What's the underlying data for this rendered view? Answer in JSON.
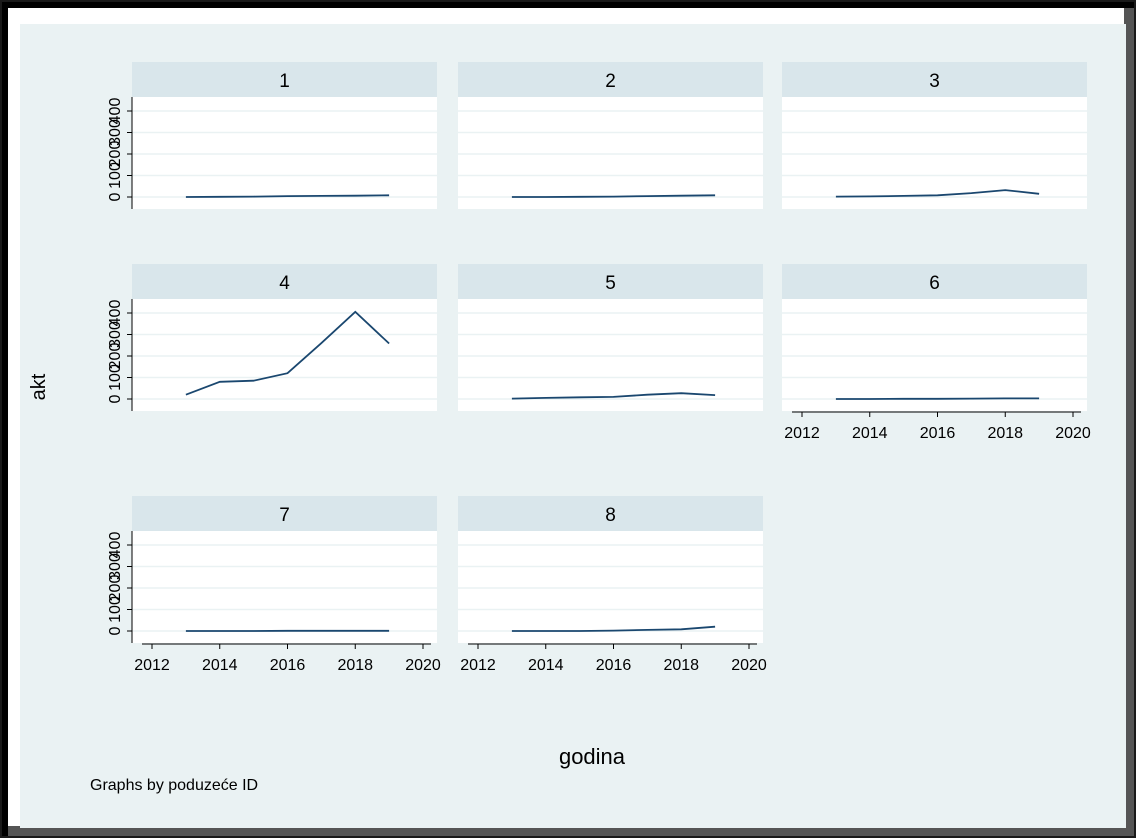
{
  "colors": {
    "plot_region": "#eaf2f3",
    "facet_header": "#d9e6eb",
    "panel": "#ffffff",
    "gridline": "#eaf2f3",
    "line": "#1a476f",
    "axis": "#000000"
  },
  "chart_data": {
    "type": "line",
    "ylabel": "akt",
    "xlabel": "godina",
    "note": "Graphs by poduzeće ID",
    "xlim": [
      2012,
      2020
    ],
    "ylim": [
      0,
      400
    ],
    "xticks": [
      2012,
      2014,
      2016,
      2018,
      2020
    ],
    "yticks": [
      0,
      100,
      200,
      300,
      400
    ],
    "grid": true,
    "x": [
      2013,
      2014,
      2015,
      2016,
      2017,
      2018,
      2019
    ],
    "series": [
      {
        "name": "1",
        "values": [
          0,
          1,
          2,
          4,
          5,
          6,
          8
        ]
      },
      {
        "name": "2",
        "values": [
          0,
          0,
          1,
          2,
          4,
          6,
          8
        ]
      },
      {
        "name": "3",
        "values": [
          2,
          3,
          5,
          8,
          18,
          32,
          15
        ]
      },
      {
        "name": "4",
        "values": [
          20,
          80,
          85,
          120,
          260,
          405,
          258
        ]
      },
      {
        "name": "5",
        "values": [
          2,
          5,
          8,
          10,
          20,
          27,
          18
        ]
      },
      {
        "name": "6",
        "values": [
          0,
          0,
          1,
          1,
          2,
          3,
          3
        ]
      },
      {
        "name": "7",
        "values": [
          0,
          0,
          0,
          1,
          1,
          1,
          1
        ]
      },
      {
        "name": "8",
        "values": [
          0,
          0,
          0,
          2,
          5,
          8,
          20
        ]
      }
    ]
  }
}
